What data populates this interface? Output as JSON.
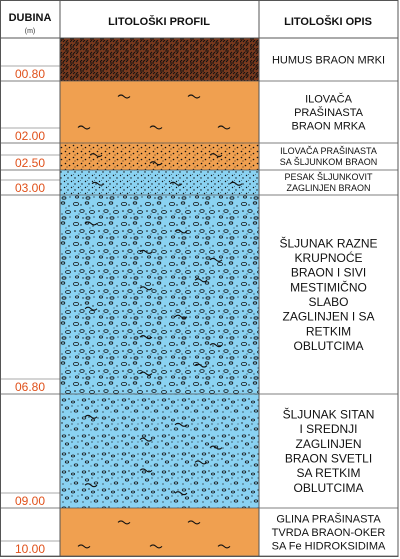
{
  "headers": {
    "depth": "DUBINA",
    "depth_unit": "(m)",
    "profile": "LITOLOŠKI PROFIL",
    "description": "LITOLOŠKI OPIS"
  },
  "colors": {
    "grid": "#555555",
    "depth_text": "#e0501a",
    "orange": "#f0a050",
    "blue": "#8ad2f2",
    "humus_bg": "#7a3a1e",
    "pattern_ink": "#111111"
  },
  "layers": [
    {
      "top": 0.0,
      "bottom": 0.8,
      "depth_label": "00.80",
      "pattern": "humus",
      "description": [
        "HUMUS BRAON MRKI"
      ]
    },
    {
      "top": 0.8,
      "bottom": 2.0,
      "depth_label": "02.00",
      "pattern": "clay",
      "description": [
        "ILOVAČA",
        "PRAŠINASTA",
        "BRAON MRKA"
      ]
    },
    {
      "top": 2.0,
      "bottom": 2.5,
      "depth_label": "02.50",
      "pattern": "clay-gravel",
      "description": [
        "ILOVAČA PRAŠINASTA",
        "SA ŠLJUNKOM BRAON"
      ]
    },
    {
      "top": 2.5,
      "bottom": 3.0,
      "depth_label": "03.00",
      "pattern": "sand",
      "description": [
        "PESAK ŠLJUNKOVIT",
        "ZAGLINJEN BRAON"
      ]
    },
    {
      "top": 3.0,
      "bottom": 6.8,
      "depth_label": "06.80",
      "pattern": "gravel",
      "description": [
        "ŠLJUNAK RAZNE",
        "KRUPNOĆE",
        "BRAON I SIVI",
        "MESTIMIČNO",
        "SLABO",
        "ZAGLINJEN I SA",
        "RETKIM",
        "OBLUTCIMA"
      ]
    },
    {
      "top": 6.8,
      "bottom": 9.0,
      "depth_label": "09.00",
      "pattern": "gravel-fine",
      "description": [
        "ŠLJUNAK SITAN",
        "I SREDNJI",
        "ZAGLINJEN",
        "BRAON SVETLI",
        "SA RETKIM",
        "OBLUTCIMA"
      ]
    },
    {
      "top": 9.0,
      "bottom": 10.0,
      "depth_label": "10.00",
      "pattern": "clay",
      "description": [
        "GLINA PRAŠINASTA",
        "TVRDA BRAON-OKER",
        "SA Fe HIDROKSIDIMA"
      ]
    }
  ]
}
